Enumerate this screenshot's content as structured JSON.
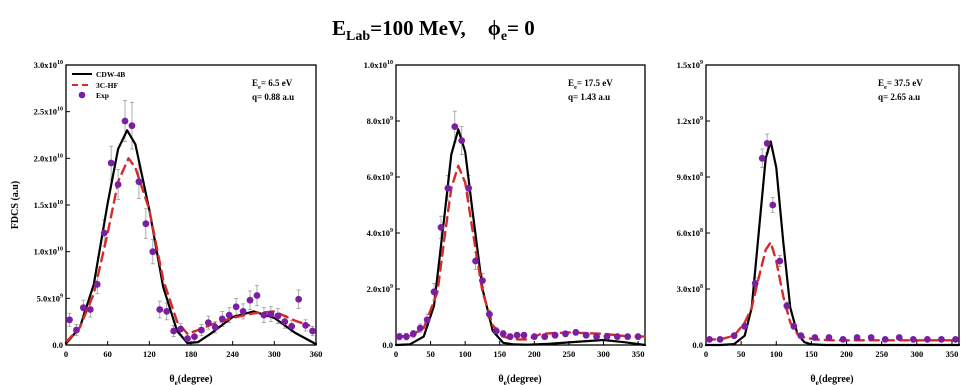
{
  "figure": {
    "title_main": "E",
    "title_sub": "Lab",
    "title_rest": "=100 MeV,",
    "title_phi": "ϕ",
    "title_phi_sub": "e",
    "title_phi_rest": "= 0"
  },
  "colors": {
    "cdw": "#000000",
    "hf": "#d42a2a",
    "exp": "#7b1fa2"
  },
  "chart_data": [
    {
      "type": "line",
      "xlabel_main": "θ",
      "xlabel_sub": "e",
      "xlabel_rest": "(degree)",
      "ylabel": "FDCS (a.u)",
      "xlim": [
        0,
        360
      ],
      "xticks": [
        0,
        60,
        120,
        180,
        240,
        300,
        360
      ],
      "ylim": [
        0,
        30000000000.0
      ],
      "yticks": [
        {
          "value": 0,
          "mant": "0.0",
          "exp": ""
        },
        {
          "value": 5000000000.0,
          "mant": "5.0x10",
          "exp": "9"
        },
        {
          "value": 10000000000.0,
          "mant": "1.0x10",
          "exp": "10"
        },
        {
          "value": 15000000000.0,
          "mant": "1.5x10",
          "exp": "10"
        },
        {
          "value": 20000000000.0,
          "mant": "2.0x10",
          "exp": "10"
        },
        {
          "value": 25000000000.0,
          "mant": "2.5x10",
          "exp": "10"
        },
        {
          "value": 30000000000.0,
          "mant": "3.0x10",
          "exp": "10"
        }
      ],
      "annotation": {
        "e_main": "E",
        "e_sub": "e",
        "e_rest": "= 6.5 eV",
        "q": "q= 0.88 a.u"
      },
      "legend": {
        "placement": "top-left",
        "entries": [
          "CDW-4B",
          "3C-HF",
          "Exp"
        ]
      },
      "series": [
        {
          "name": "CDW-4B",
          "style": "solid",
          "x": [
            0,
            20,
            40,
            60,
            75,
            88,
            100,
            120,
            140,
            160,
            175,
            190,
            210,
            240,
            270,
            300,
            330,
            360
          ],
          "y": [
            150000000.0,
            1900000000.0,
            6500000000.0,
            15200000000.0,
            21000000000.0,
            23000000000.0,
            21500000000.0,
            14500000000.0,
            6200000000.0,
            1500000000.0,
            200000000.0,
            300000000.0,
            1300000000.0,
            3000000000.0,
            3600000000.0,
            2900000000.0,
            1300000000.0,
            100000000.0
          ]
        },
        {
          "name": "3C-HF",
          "style": "dashed",
          "x": [
            0,
            20,
            40,
            60,
            75,
            90,
            100,
            120,
            140,
            160,
            175,
            190,
            210,
            240,
            270,
            300,
            330,
            350
          ],
          "y": [
            300000000.0,
            1900000000.0,
            5500000000.0,
            12000000000.0,
            17500000000.0,
            20000000000.0,
            19000000000.0,
            14500000000.0,
            7000000000.0,
            2500000000.0,
            1200000000.0,
            1600000000.0,
            2200000000.0,
            2900000000.0,
            3400000000.0,
            3600000000.0,
            2600000000.0,
            2100000000.0
          ]
        }
      ],
      "points": {
        "name": "Exp",
        "x": [
          5,
          15,
          25,
          35,
          45,
          55,
          65,
          75,
          85,
          95,
          105,
          115,
          125,
          135,
          145,
          155,
          165,
          175,
          185,
          195,
          205,
          215,
          225,
          235,
          245,
          255,
          265,
          275,
          285,
          295,
          305,
          315,
          325,
          335,
          345,
          355
        ],
        "y": [
          2700000000.0,
          1600000000.0,
          4000000000.0,
          3800000000.0,
          6500000000.0,
          12000000000.0,
          19500000000.0,
          17200000000.0,
          24000000000.0,
          23500000000.0,
          17500000000.0,
          13000000000.0,
          10000000000.0,
          3800000000.0,
          3600000000.0,
          1500000000.0,
          1700000000.0,
          700000000.0,
          900000000.0,
          1600000000.0,
          2400000000.0,
          1900000000.0,
          2800000000.0,
          3200000000.0,
          4100000000.0,
          3600000000.0,
          4800000000.0,
          5300000000.0,
          3200000000.0,
          3300000000.0,
          3100000000.0,
          2500000000.0,
          2000000000.0,
          4900000000.0,
          2100000000.0,
          1500000000.0
        ],
        "err": [
          700000000.0,
          600000000.0,
          800000000.0,
          800000000.0,
          1000000000.0,
          1400000000.0,
          1800000000.0,
          1600000000.0,
          2200000000.0,
          2500000000.0,
          1800000000.0,
          1600000000.0,
          1300000000.0,
          900000000.0,
          900000000.0,
          600000000.0,
          600000000.0,
          500000000.0,
          500000000.0,
          600000000.0,
          700000000.0,
          600000000.0,
          800000000.0,
          800000000.0,
          900000000.0,
          800000000.0,
          1000000000.0,
          1100000000.0,
          800000000.0,
          800000000.0,
          800000000.0,
          700000000.0,
          600000000.0,
          1000000000.0,
          600000000.0,
          500000000.0
        ]
      }
    },
    {
      "type": "line",
      "xlabel_main": "θ",
      "xlabel_sub": "e",
      "xlabel_rest": "(degree)",
      "ylabel": "",
      "xlim": [
        0,
        360
      ],
      "xticks": [
        0,
        50,
        100,
        150,
        200,
        250,
        300,
        350
      ],
      "ylim": [
        0,
        10000000000.0
      ],
      "yticks": [
        {
          "value": 0,
          "mant": "0.0",
          "exp": ""
        },
        {
          "value": 2000000000.0,
          "mant": "2.0x10",
          "exp": "9"
        },
        {
          "value": 4000000000.0,
          "mant": "4.0x10",
          "exp": "9"
        },
        {
          "value": 6000000000.0,
          "mant": "6.0x10",
          "exp": "9"
        },
        {
          "value": 8000000000.0,
          "mant": "8.0x10",
          "exp": "9"
        },
        {
          "value": 10000000000.0,
          "mant": "1.0x10",
          "exp": "10"
        }
      ],
      "annotation": {
        "e_main": "E",
        "e_sub": "e",
        "e_rest": "= 17.5 eV",
        "q": "q= 1.43 a.u"
      },
      "series": [
        {
          "name": "CDW-4B",
          "style": "solid",
          "x": [
            0,
            20,
            40,
            55,
            70,
            80,
            90,
            100,
            110,
            125,
            140,
            155,
            170,
            190,
            220,
            260,
            300,
            330,
            360
          ],
          "y": [
            0,
            20000000.0,
            300000000.0,
            1400000000.0,
            4600000000.0,
            6800000000.0,
            7700000000.0,
            6900000000.0,
            4900000000.0,
            2000000000.0,
            500000000.0,
            80000000.0,
            20000000.0,
            10000000.0,
            40000000.0,
            110000000.0,
            180000000.0,
            100000000.0,
            0
          ]
        },
        {
          "name": "3C-HF",
          "style": "dashed",
          "x": [
            0,
            20,
            40,
            60,
            70,
            80,
            90,
            100,
            110,
            125,
            140,
            155,
            170,
            190,
            210,
            250,
            300,
            330,
            360
          ],
          "y": [
            300000000.0,
            320000000.0,
            600000000.0,
            1900000000.0,
            3800000000.0,
            5600000000.0,
            6400000000.0,
            5800000000.0,
            4200000000.0,
            1900000000.0,
            700000000.0,
            300000000.0,
            200000000.0,
            200000000.0,
            400000000.0,
            450000000.0,
            400000000.0,
            320000000.0,
            300000000.0
          ]
        }
      ],
      "points": {
        "name": "Exp",
        "x": [
          5,
          15,
          25,
          35,
          45,
          55,
          65,
          75,
          85,
          95,
          105,
          115,
          125,
          135,
          145,
          155,
          165,
          175,
          185,
          200,
          215,
          230,
          245,
          260,
          275,
          290,
          305,
          320,
          335,
          350
        ],
        "y": [
          300000000.0,
          300000000.0,
          400000000.0,
          600000000.0,
          900000000.0,
          1900000000.0,
          4200000000.0,
          5600000000.0,
          7800000000.0,
          7300000000.0,
          5600000000.0,
          3000000000.0,
          2300000000.0,
          1100000000.0,
          500000000.0,
          400000000.0,
          300000000.0,
          350000000.0,
          350000000.0,
          300000000.0,
          300000000.0,
          350000000.0,
          400000000.0,
          450000000.0,
          350000000.0,
          300000000.0,
          300000000.0,
          300000000.0,
          300000000.0,
          300000000.0
        ],
        "err": [
          120000000.0,
          120000000.0,
          120000000.0,
          150000000.0,
          200000000.0,
          300000000.0,
          400000000.0,
          450000000.0,
          550000000.0,
          500000000.0,
          450000000.0,
          300000000.0,
          250000000.0,
          150000000.0,
          120000000.0,
          120000000.0,
          100000000.0,
          100000000.0,
          100000000.0,
          100000000.0,
          100000000.0,
          100000000.0,
          100000000.0,
          100000000.0,
          100000000.0,
          100000000.0,
          100000000.0,
          100000000.0,
          100000000.0,
          100000000.0
        ]
      }
    },
    {
      "type": "line",
      "xlabel_main": "θ",
      "xlabel_sub": "e",
      "xlabel_rest": "(degree)",
      "ylabel": "",
      "xlim": [
        0,
        360
      ],
      "xticks": [
        0,
        50,
        100,
        150,
        200,
        250,
        300,
        350
      ],
      "ylim": [
        0,
        1500000000.0
      ],
      "yticks": [
        {
          "value": 0,
          "mant": "0.0",
          "exp": ""
        },
        {
          "value": 300000000.0,
          "mant": "3.0x10",
          "exp": "8"
        },
        {
          "value": 600000000.0,
          "mant": "6.0x10",
          "exp": "8"
        },
        {
          "value": 900000000.0,
          "mant": "9.0x10",
          "exp": "8"
        },
        {
          "value": 1200000000.0,
          "mant": "1.2x10",
          "exp": "9"
        },
        {
          "value": 1500000000.0,
          "mant": "1.5x10",
          "exp": "9"
        }
      ],
      "annotation": {
        "e_main": "E",
        "e_sub": "e",
        "e_rest": "= 37.5 eV",
        "q": "q= 2.65 a.u"
      },
      "series": [
        {
          "name": "CDW-4B",
          "style": "solid",
          "x": [
            0,
            20,
            40,
            55,
            65,
            75,
            85,
            92,
            100,
            110,
            120,
            130,
            140,
            150,
            170,
            200,
            250,
            300,
            360
          ],
          "y": [
            0,
            0,
            5000000.0,
            50000000.0,
            200000000.0,
            600000000.0,
            1000000000.0,
            1090000000.0,
            950000000.0,
            550000000.0,
            200000000.0,
            60000000.0,
            15000000.0,
            3000000.0,
            0,
            0,
            0,
            0,
            0
          ]
        },
        {
          "name": "3C-HF",
          "style": "dashed",
          "x": [
            0,
            20,
            40,
            55,
            65,
            75,
            85,
            92,
            100,
            110,
            120,
            130,
            140,
            155,
            180,
            220,
            280,
            330,
            360
          ],
          "y": [
            30000000.0,
            30000000.0,
            50000000.0,
            120000000.0,
            200000000.0,
            360000000.0,
            510000000.0,
            550000000.0,
            450000000.0,
            260000000.0,
            120000000.0,
            60000000.0,
            40000000.0,
            30000000.0,
            25000000.0,
            25000000.0,
            25000000.0,
            25000000.0,
            25000000.0
          ]
        }
      ],
      "points": {
        "name": "Exp",
        "x": [
          5,
          20,
          40,
          55,
          70,
          80,
          87,
          95,
          105,
          115,
          125,
          135,
          155,
          175,
          195,
          215,
          235,
          255,
          275,
          295,
          315,
          335,
          355
        ],
        "y": [
          30000000.0,
          30000000.0,
          50000000.0,
          100000000.0,
          330000000.0,
          1000000000.0,
          1080000000.0,
          750000000.0,
          450000000.0,
          210000000.0,
          100000000.0,
          50000000.0,
          40000000.0,
          40000000.0,
          30000000.0,
          40000000.0,
          40000000.0,
          30000000.0,
          40000000.0,
          30000000.0,
          30000000.0,
          30000000.0,
          30000000.0
        ],
        "err": [
          10000000.0,
          10000000.0,
          10000000.0,
          15000000.0,
          30000000.0,
          50000000.0,
          50000000.0,
          40000000.0,
          30000000.0,
          20000000.0,
          15000000.0,
          10000000.0,
          10000000.0,
          10000000.0,
          10000000.0,
          10000000.0,
          10000000.0,
          10000000.0,
          10000000.0,
          10000000.0,
          10000000.0,
          10000000.0,
          10000000.0
        ]
      }
    }
  ]
}
